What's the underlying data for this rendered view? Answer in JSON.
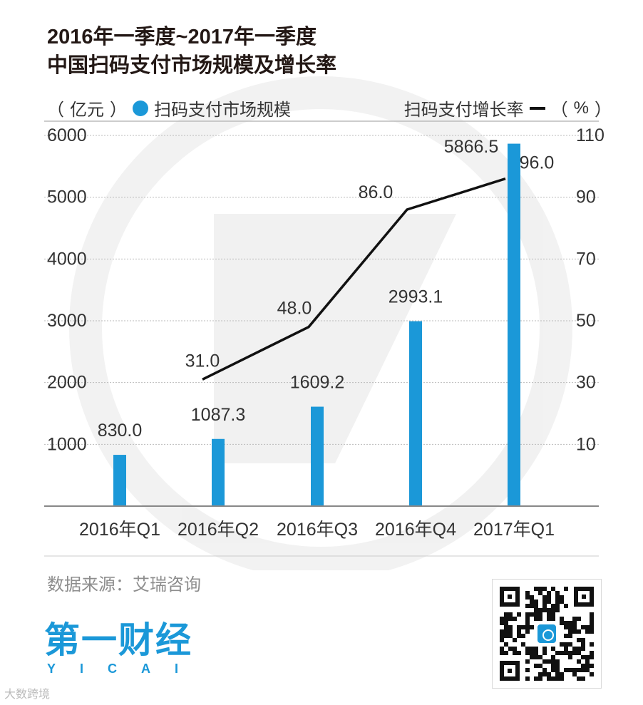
{
  "title": {
    "line1": "2016年一季度~2017年一季度",
    "line2": "中国扫码支付市场规模及增长率"
  },
  "legend": {
    "left_unit_open": "（",
    "left_unit": "亿元",
    "left_unit_close": "）",
    "bar_series_name": "扫码支付市场规模",
    "line_series_name": "扫码支付增长率",
    "right_unit_open": "（",
    "right_unit": "%",
    "right_unit_close": "）"
  },
  "chart_data": {
    "type": "bar",
    "categories": [
      "2016年Q1",
      "2016年Q2",
      "2016年Q3",
      "2016年Q4",
      "2017年Q1"
    ],
    "series": [
      {
        "name": "扫码支付市场规模",
        "type": "bar",
        "axis": "left",
        "unit": "亿元",
        "values": [
          830.0,
          1087.3,
          1609.2,
          2993.1,
          5866.5
        ],
        "labels": [
          "830.0",
          "1087.3",
          "1609.2",
          "2993.1",
          "5866.5"
        ]
      },
      {
        "name": "扫码支付增长率",
        "type": "line",
        "axis": "right",
        "unit": "%",
        "values": [
          null,
          31.0,
          48.0,
          86.0,
          96.0
        ],
        "labels": [
          "",
          "31.0",
          "48.0",
          "86.0",
          "96.0"
        ]
      }
    ],
    "left_axis": {
      "ticks": [
        "1000",
        "2000",
        "3000",
        "4000",
        "5000",
        "6000"
      ],
      "tick_values": [
        1000,
        2000,
        3000,
        4000,
        5000,
        6000
      ],
      "ylim": [
        0,
        6000
      ]
    },
    "right_axis": {
      "ticks": [
        "10",
        "30",
        "50",
        "70",
        "90",
        "110"
      ],
      "tick_values": [
        10,
        30,
        50,
        70,
        90,
        110
      ],
      "ylim": [
        -10,
        110
      ]
    },
    "grid": true,
    "colors": {
      "bar": "#1b98d8",
      "line": "#111111",
      "grid": "#bbbbbb"
    }
  },
  "source": "数据来源：艾瑞咨询",
  "logo": {
    "main": "第一财经",
    "sub": "YICAI"
  },
  "watermark": "大数跨境",
  "qr_code": {
    "icon": "qr-code-icon"
  }
}
